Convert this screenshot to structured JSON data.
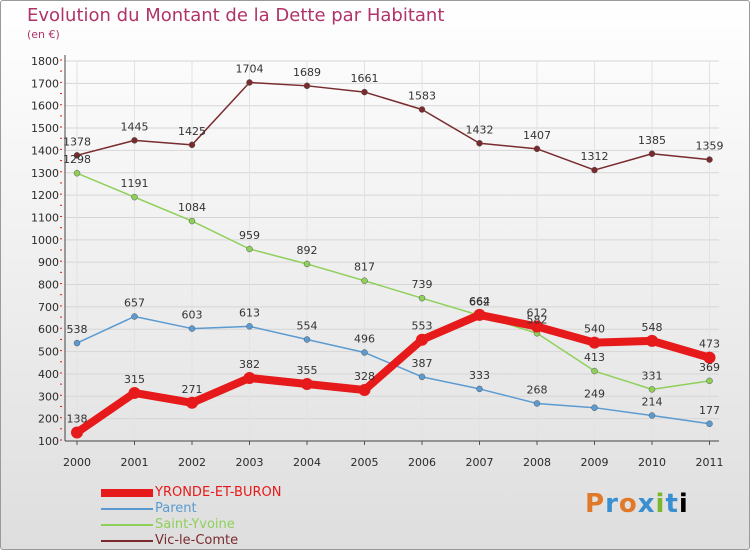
{
  "header": {
    "title": "Evolution du Montant de la Dette par Habitant",
    "subtitle": "(en €)"
  },
  "brand": {
    "text": "Proxiti"
  },
  "chart_data": {
    "type": "line",
    "title": "Evolution du Montant de la Dette par Habitant",
    "subtitle": "(en €)",
    "xlabel": "",
    "ylabel": "",
    "x": [
      "2000",
      "2001",
      "2002",
      "2003",
      "2004",
      "2005",
      "2006",
      "2007",
      "2008",
      "2009",
      "2010",
      "2011"
    ],
    "ylim": [
      100,
      1800
    ],
    "yticks": [
      100,
      200,
      300,
      400,
      500,
      600,
      700,
      800,
      900,
      1000,
      1100,
      1200,
      1300,
      1400,
      1500,
      1600,
      1700,
      1800
    ],
    "legend_position": "bottom-left",
    "series": [
      {
        "name": "YRONDE-ET-BURON",
        "color": "#e61a1a",
        "emphasis": true,
        "values": [
          138,
          315,
          271,
          382,
          355,
          328,
          553,
          664,
          612,
          540,
          548,
          473
        ]
      },
      {
        "name": "Parent",
        "color": "#5b9bd1",
        "values": [
          538,
          657,
          603,
          613,
          554,
          496,
          387,
          333,
          268,
          249,
          214,
          177
        ]
      },
      {
        "name": "Saint-Yvoine",
        "color": "#8fd05a",
        "values": [
          1298,
          1191,
          1084,
          959,
          892,
          817,
          739,
          662,
          582,
          413,
          331,
          369
        ]
      },
      {
        "name": "Vic-le-Comte",
        "color": "#7a2b2e",
        "values": [
          1378,
          1445,
          1425,
          1704,
          1689,
          1661,
          1583,
          1432,
          1407,
          1312,
          1385,
          1359
        ]
      }
    ]
  }
}
